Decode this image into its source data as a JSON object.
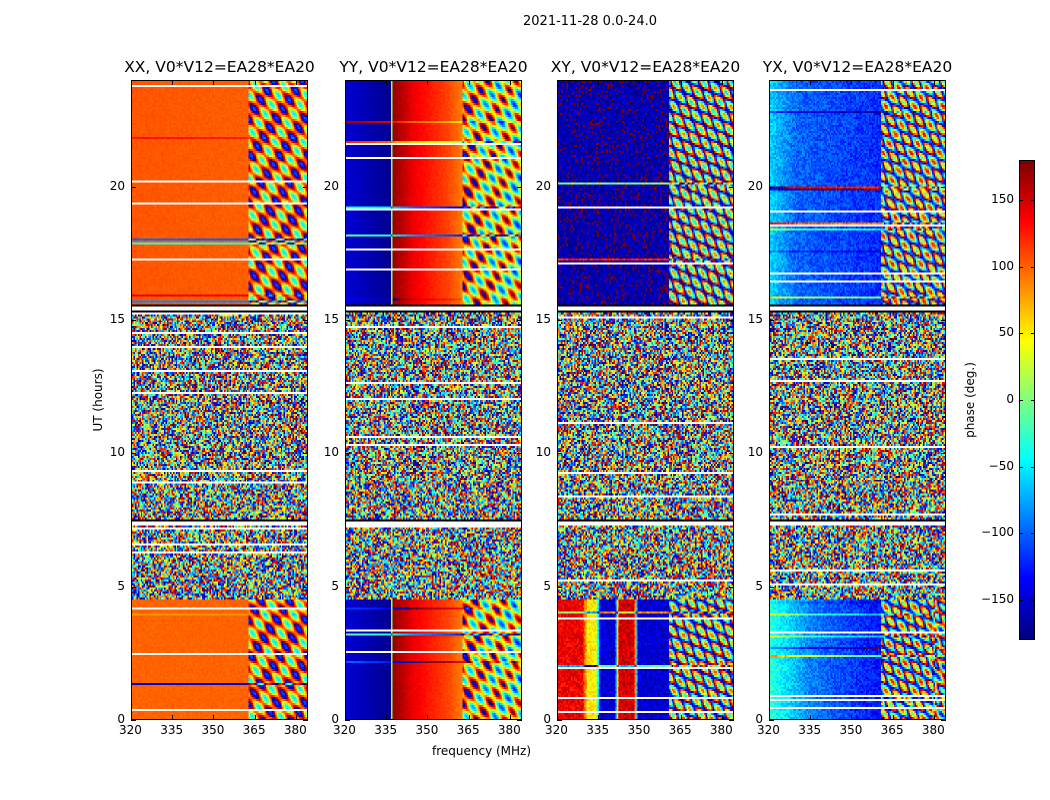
{
  "chart_data": {
    "type": "heatmap",
    "title": "2021-11-28 0.0-24.0",
    "xlabel": "frequency (MHz)",
    "ylabel": "UT (hours)",
    "xlim": [
      320,
      384.4
    ],
    "ylim": [
      0,
      24
    ],
    "xticks": [
      320,
      335,
      350,
      365,
      380
    ],
    "yticks": [
      0,
      5,
      10,
      15,
      20
    ],
    "colorbar": {
      "label": "phase (deg.)",
      "range": [
        -180,
        180
      ],
      "ticks": [
        150,
        100,
        50,
        0,
        -50,
        -100,
        -150
      ],
      "tick_labels": [
        "150",
        "100",
        "50",
        "0",
        "−50",
        "−100",
        "−150"
      ],
      "colormap": "jet"
    },
    "time_segments": [
      {
        "from": 0,
        "to": 4.5,
        "kind": "smooth",
        "profile": "lower"
      },
      {
        "from": 4.5,
        "to": 7.3,
        "kind": "noise"
      },
      {
        "from": 7.3,
        "to": 7.5,
        "kind": "flagged"
      },
      {
        "from": 7.5,
        "to": 15.3,
        "kind": "noise"
      },
      {
        "from": 15.3,
        "to": 15.6,
        "kind": "flagged"
      },
      {
        "from": 15.6,
        "to": 24,
        "kind": "smooth",
        "profile": "upper"
      }
    ],
    "panels": [
      {
        "title": "XX, V0*V12=EA28*EA20",
        "fringe_start": 363,
        "lower": [
          [
            320,
            100
          ],
          [
            384,
            100
          ]
        ],
        "upper": [
          [
            320,
            105
          ],
          [
            384,
            100
          ]
        ]
      },
      {
        "title": "YY, V0*V12=EA28*EA20",
        "fringe_start": 363,
        "lower": [
          [
            320,
            -150
          ],
          [
            336.8,
            -175
          ],
          [
            337,
            175
          ],
          [
            345,
            140
          ],
          [
            358,
            110
          ],
          [
            370,
            60
          ],
          [
            384,
            20
          ]
        ],
        "upper": [
          [
            320,
            -150
          ],
          [
            336.8,
            -175
          ],
          [
            337,
            175
          ],
          [
            345,
            140
          ],
          [
            358,
            110
          ],
          [
            370,
            60
          ],
          [
            384,
            20
          ]
        ]
      },
      {
        "title": "XY, V0*V12=EA28*EA20",
        "fringe_start": 361,
        "lower": [
          [
            320,
            140
          ],
          [
            329,
            140
          ],
          [
            331,
            50
          ],
          [
            334,
            50
          ],
          [
            335.5,
            -150
          ],
          [
            341,
            -150
          ],
          [
            342.5,
            150
          ],
          [
            348,
            150
          ],
          [
            349.5,
            -150
          ],
          [
            384,
            -150
          ]
        ],
        "upper": [
          [
            320,
            -165
          ],
          [
            384,
            -165
          ]
        ]
      },
      {
        "title": "YX, V0*V12=EA28*EA20",
        "fringe_start": 361,
        "lower": [
          [
            320,
            -30
          ],
          [
            335,
            -90
          ],
          [
            360,
            -130
          ],
          [
            380,
            -120
          ],
          [
            381,
            110
          ],
          [
            384,
            110
          ]
        ],
        "upper": [
          [
            320,
            -60
          ],
          [
            330,
            -100
          ],
          [
            360,
            -120
          ],
          [
            384,
            -120
          ]
        ]
      }
    ]
  }
}
